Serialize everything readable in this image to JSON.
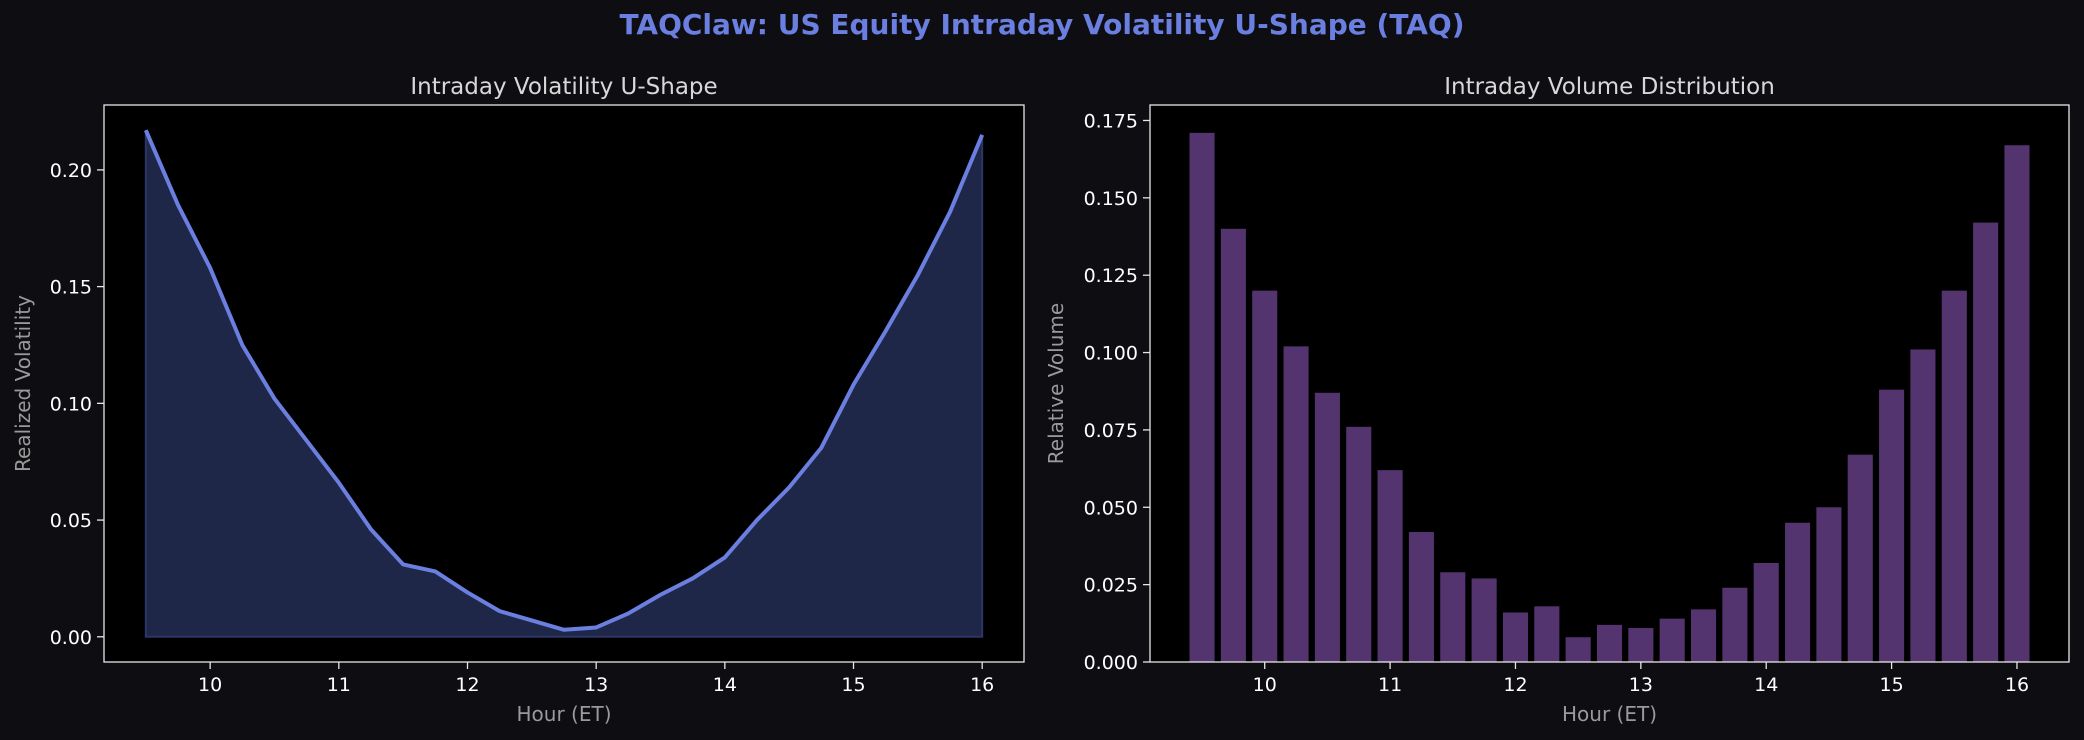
{
  "suptitle": "TAQClaw: US Equity Intraday Volatility U-Shape (TAQ)",
  "colors": {
    "background": "#0d0d12",
    "plot_background": "#000000",
    "line": "#6b7fe0",
    "fill": "#1f2748",
    "bar": "#54346f",
    "axis_text": "#ffffff",
    "label_text": "#9a9a9a",
    "title_text": "#d8d8d8"
  },
  "chart_data": [
    {
      "type": "area",
      "title": "Intraday Volatility U-Shape",
      "xlabel": "Hour (ET)",
      "ylabel": "Realized Volatility",
      "x": [
        9.5,
        9.75,
        10.0,
        10.25,
        10.5,
        10.75,
        11.0,
        11.25,
        11.5,
        11.75,
        12.0,
        12.25,
        12.5,
        12.75,
        13.0,
        13.25,
        13.5,
        13.75,
        14.0,
        14.25,
        14.5,
        14.75,
        15.0,
        15.25,
        15.5,
        15.75,
        16.0
      ],
      "series": [
        {
          "values": [
            0.217,
            0.185,
            0.158,
            0.125,
            0.102,
            0.084,
            0.066,
            0.046,
            0.031,
            0.028,
            0.019,
            0.011,
            0.007,
            0.003,
            0.004,
            0.01,
            0.018,
            0.025,
            0.034,
            0.05,
            0.064,
            0.081,
            0.108,
            0.131,
            0.155,
            0.182,
            0.215
          ]
        }
      ],
      "xlim": [
        9.175,
        16.325
      ],
      "ylim": [
        -0.0108,
        0.2278
      ],
      "xticks": [
        10,
        11,
        12,
        13,
        14,
        15,
        16
      ],
      "xtick_labels": [
        "10",
        "11",
        "12",
        "13",
        "14",
        "15",
        "16"
      ],
      "yticks": [
        0.0,
        0.05,
        0.1,
        0.15,
        0.2
      ],
      "ytick_labels": [
        "0.00",
        "0.05",
        "0.10",
        "0.15",
        "0.20"
      ],
      "grid": false,
      "legend": "none"
    },
    {
      "type": "bar",
      "title": "Intraday Volume Distribution",
      "xlabel": "Hour (ET)",
      "ylabel": "Relative Volume",
      "x": [
        9.5,
        9.75,
        10.0,
        10.25,
        10.5,
        10.75,
        11.0,
        11.25,
        11.5,
        11.75,
        12.0,
        12.25,
        12.5,
        12.75,
        13.0,
        13.25,
        13.5,
        13.75,
        14.0,
        14.25,
        14.5,
        14.75,
        15.0,
        15.25,
        15.5,
        15.75,
        16.0
      ],
      "values": [
        0.171,
        0.14,
        0.12,
        0.102,
        0.087,
        0.076,
        0.062,
        0.042,
        0.029,
        0.027,
        0.016,
        0.018,
        0.008,
        0.012,
        0.011,
        0.014,
        0.017,
        0.024,
        0.032,
        0.045,
        0.05,
        0.067,
        0.088,
        0.101,
        0.12,
        0.142,
        0.167
      ],
      "bar_width": 0.2,
      "xlim": [
        9.085,
        16.415
      ],
      "ylim": [
        0.0,
        0.18
      ],
      "xticks": [
        10,
        11,
        12,
        13,
        14,
        15,
        16
      ],
      "xtick_labels": [
        "10",
        "11",
        "12",
        "13",
        "14",
        "15",
        "16"
      ],
      "yticks": [
        0.0,
        0.025,
        0.05,
        0.075,
        0.1,
        0.125,
        0.15,
        0.175
      ],
      "ytick_labels": [
        "0.000",
        "0.025",
        "0.050",
        "0.075",
        "0.100",
        "0.125",
        "0.150",
        "0.175"
      ],
      "grid": false,
      "legend": "none"
    }
  ]
}
